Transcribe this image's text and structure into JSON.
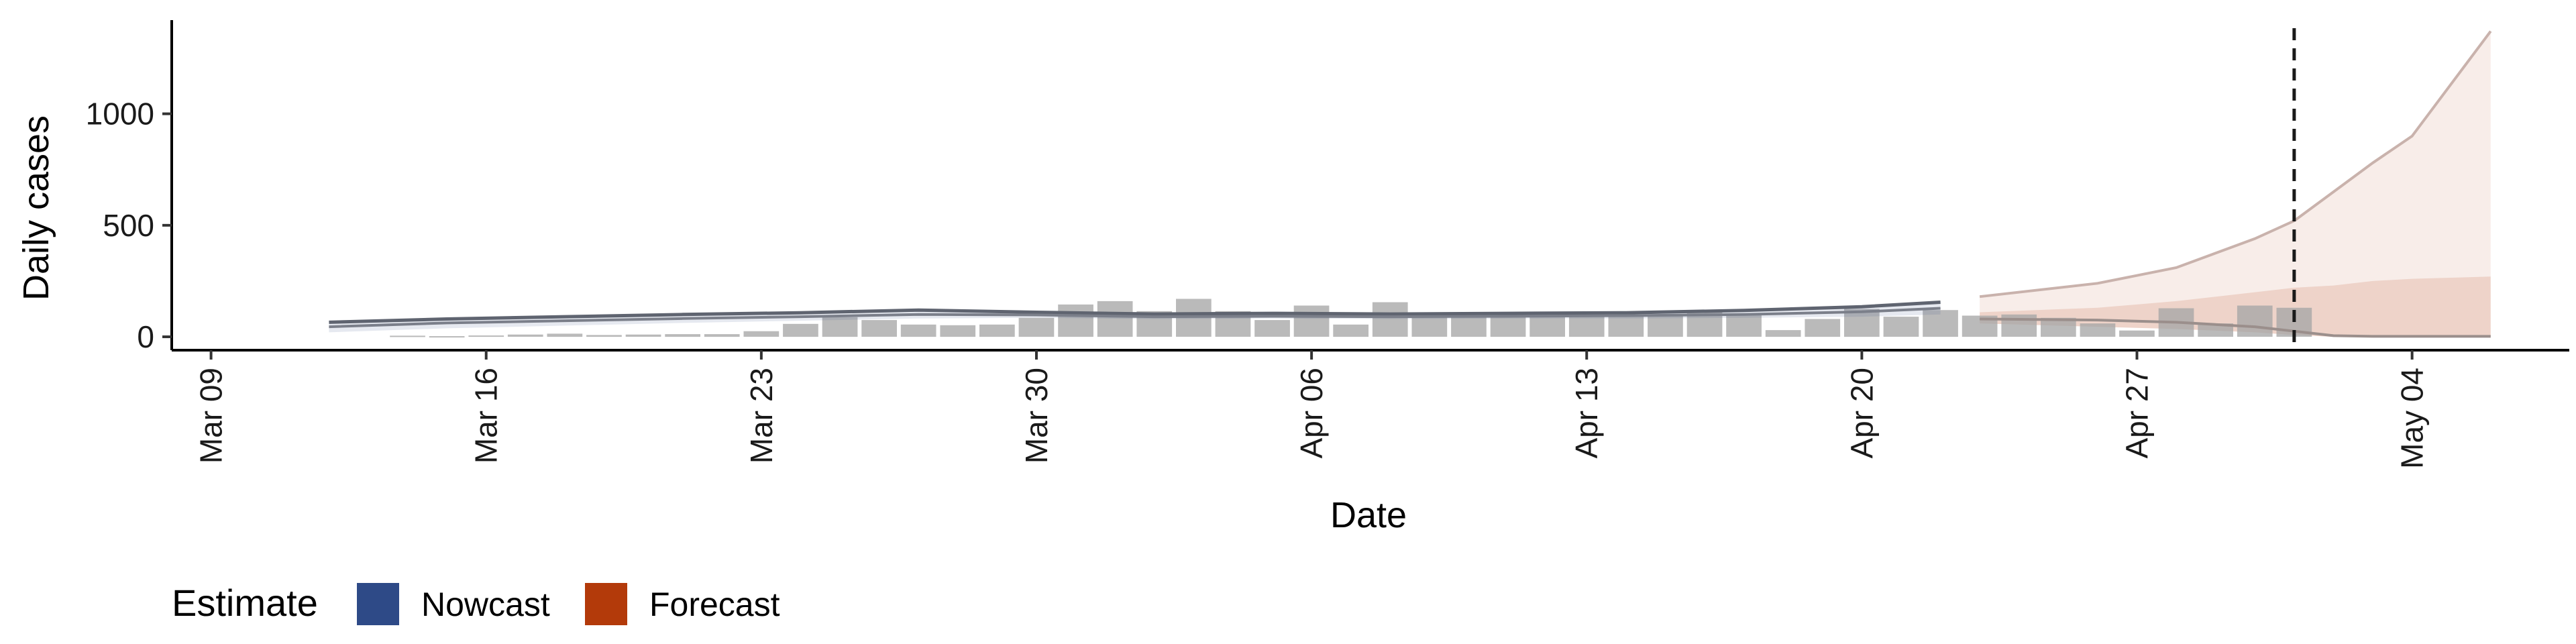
{
  "chart_data": {
    "type": "bar",
    "xlabel": "Date",
    "ylabel": "Daily cases",
    "ylim": [
      -60,
      1420
    ],
    "xlim": [
      "2020-03-08",
      "2020-05-08"
    ],
    "y_ticks": [
      0,
      500,
      1000
    ],
    "x_ticks": [
      "Mar 09",
      "Mar 16",
      "Mar 23",
      "Mar 30",
      "Apr 06",
      "Apr 13",
      "Apr 20",
      "Apr 27",
      "May 04"
    ],
    "x_tick_dates": [
      "2020-03-09",
      "2020-03-16",
      "2020-03-23",
      "2020-03-30",
      "2020-04-06",
      "2020-04-13",
      "2020-04-20",
      "2020-04-27",
      "2020-05-04"
    ],
    "grid": false,
    "legend": {
      "title": "Estimate",
      "position": "bottom-left",
      "entries": [
        {
          "label": "Nowcast",
          "color": "#2e4a87"
        },
        {
          "label": "Forecast",
          "color": "#b33a0a"
        }
      ]
    },
    "cutoff_date": "2020-05-01",
    "reported_cases": {
      "dates": [
        "2020-03-14",
        "2020-03-15",
        "2020-03-16",
        "2020-03-17",
        "2020-03-18",
        "2020-03-19",
        "2020-03-20",
        "2020-03-21",
        "2020-03-22",
        "2020-03-23",
        "2020-03-24",
        "2020-03-25",
        "2020-03-26",
        "2020-03-27",
        "2020-03-28",
        "2020-03-29",
        "2020-03-30",
        "2020-03-31",
        "2020-04-01",
        "2020-04-02",
        "2020-04-03",
        "2020-04-04",
        "2020-04-05",
        "2020-04-06",
        "2020-04-07",
        "2020-04-08",
        "2020-04-09",
        "2020-04-10",
        "2020-04-11",
        "2020-04-12",
        "2020-04-13",
        "2020-04-14",
        "2020-04-15",
        "2020-04-16",
        "2020-04-17",
        "2020-04-18",
        "2020-04-19",
        "2020-04-20",
        "2020-04-21",
        "2020-04-22",
        "2020-04-23",
        "2020-04-24",
        "2020-04-25",
        "2020-04-26",
        "2020-04-27",
        "2020-04-28",
        "2020-04-29",
        "2020-04-30",
        "2020-05-01"
      ],
      "values": [
        5,
        3,
        6,
        10,
        14,
        8,
        10,
        12,
        12,
        25,
        58,
        88,
        75,
        55,
        52,
        55,
        85,
        145,
        160,
        115,
        170,
        115,
        75,
        140,
        55,
        155,
        105,
        95,
        95,
        100,
        110,
        100,
        95,
        110,
        105,
        30,
        80,
        125,
        90,
        120,
        95,
        100,
        85,
        60,
        28,
        128,
        60,
        140,
        130
      ],
      "color": "#a6a6a6"
    },
    "series": [
      {
        "name": "Nowcast",
        "dates": [
          "2020-03-12",
          "2020-03-15",
          "2020-03-18",
          "2020-03-21",
          "2020-03-24",
          "2020-03-27",
          "2020-03-30",
          "2020-04-02",
          "2020-04-05",
          "2020-04-08",
          "2020-04-11",
          "2020-04-14",
          "2020-04-17",
          "2020-04-20",
          "2020-04-22"
        ],
        "median": [
          45,
          62,
          72,
          82,
          90,
          100,
          98,
          90,
          92,
          90,
          92,
          95,
          100,
          112,
          128
        ],
        "lower": [
          20,
          38,
          50,
          62,
          72,
          82,
          85,
          80,
          82,
          80,
          82,
          82,
          85,
          90,
          100
        ],
        "upper": [
          65,
          80,
          90,
          100,
          108,
          120,
          110,
          102,
          105,
          102,
          105,
          108,
          118,
          135,
          155
        ],
        "color": "#2e4a87"
      },
      {
        "name": "Forecast",
        "dates": [
          "2020-04-23",
          "2020-04-26",
          "2020-04-28",
          "2020-04-30",
          "2020-05-01",
          "2020-05-02",
          "2020-05-03",
          "2020-05-04",
          "2020-05-06"
        ],
        "median": [
          80,
          75,
          65,
          45,
          25,
          5,
          2,
          2,
          2
        ],
        "lower": [
          60,
          45,
          35,
          20,
          8,
          0,
          0,
          0,
          0
        ],
        "upper": [
          180,
          240,
          310,
          440,
          520,
          650,
          780,
          900,
          1370
        ],
        "inner_upper": [
          110,
          130,
          160,
          200,
          220,
          230,
          250,
          260,
          270
        ],
        "color": "#b33a0a"
      }
    ]
  }
}
